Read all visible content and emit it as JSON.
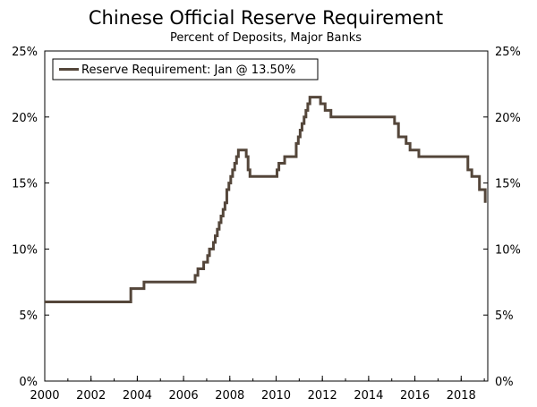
{
  "chart_data": {
    "type": "line",
    "title": "Chinese Official Reserve Requirement",
    "subtitle": "Percent of Deposits, Major Banks",
    "xlabel": "",
    "ylabel": "",
    "xlim": [
      2000,
      2019.15
    ],
    "ylim": [
      0,
      25
    ],
    "x_ticks": [
      2000,
      2002,
      2004,
      2006,
      2008,
      2010,
      2012,
      2014,
      2016,
      2018
    ],
    "x_tick_labels": [
      "2000",
      "2002",
      "2004",
      "2006",
      "2008",
      "2010",
      "2012",
      "2014",
      "2016",
      "2018"
    ],
    "y_ticks": [
      0,
      5,
      10,
      15,
      20,
      25
    ],
    "y_tick_labels": [
      "0%",
      "5%",
      "10%",
      "15%",
      "20%",
      "25%"
    ],
    "grid": false,
    "legend_position": "top-left",
    "line_color": "#54463a",
    "series": [
      {
        "name": "Reserve Requirement: Jan @ 13.50%",
        "x": [
          2000.0,
          2003.72,
          2004.29,
          2006.5,
          2006.62,
          2006.87,
          2007.04,
          2007.12,
          2007.29,
          2007.37,
          2007.46,
          2007.54,
          2007.62,
          2007.71,
          2007.79,
          2007.87,
          2007.96,
          2008.04,
          2008.12,
          2008.21,
          2008.29,
          2008.37,
          2008.46,
          2008.71,
          2008.79,
          2008.87,
          2008.96,
          2010.04,
          2010.12,
          2010.37,
          2010.87,
          2010.96,
          2011.04,
          2011.12,
          2011.21,
          2011.29,
          2011.37,
          2011.46,
          2011.92,
          2012.12,
          2012.37,
          2015.12,
          2015.29,
          2015.62,
          2015.79,
          2016.17,
          2018.29,
          2018.46,
          2018.79,
          2018.96,
          2019.04
        ],
        "y": [
          6.0,
          7.0,
          7.5,
          8.0,
          8.5,
          9.0,
          9.5,
          10.0,
          10.5,
          11.0,
          11.5,
          12.0,
          12.5,
          13.0,
          13.5,
          14.5,
          15.0,
          15.5,
          16.0,
          16.5,
          17.0,
          17.5,
          17.5,
          17.0,
          16.0,
          15.5,
          15.5,
          16.0,
          16.5,
          17.0,
          18.0,
          18.5,
          19.0,
          19.5,
          20.0,
          20.5,
          21.0,
          21.5,
          21.0,
          20.5,
          20.0,
          19.5,
          18.5,
          18.0,
          17.5,
          17.0,
          16.0,
          15.5,
          14.5,
          14.5,
          13.5
        ]
      }
    ]
  }
}
